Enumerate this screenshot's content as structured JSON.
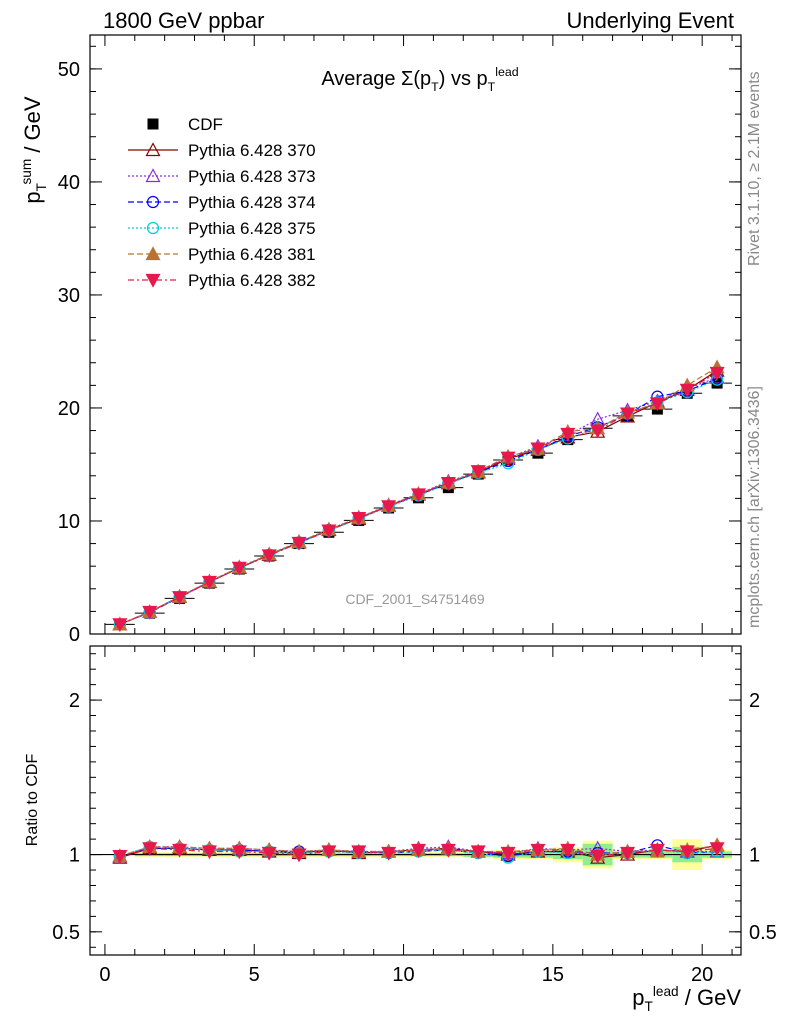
{
  "header": {
    "left": "1800 GeV ppbar",
    "right": "Underlying Event"
  },
  "side_labels": {
    "rivet": "Rivet 3.1.10, ≥ 2.1M events",
    "mcplots": "mcplots.cern.ch [arXiv:1306.3436]"
  },
  "chart_data": [
    {
      "panel": "main",
      "type": "scatter",
      "title": "Average Σ(p_T) vs p_T^lead",
      "ylabel": "p_T^sum / GeV",
      "watermark": "CDF_2001_S4751469",
      "xlim": [
        -0.5,
        21.3
      ],
      "ylim": [
        0,
        53
      ],
      "yticks": [
        0,
        10,
        20,
        30,
        40,
        50
      ],
      "legend_position": "top-left",
      "x": [
        0.5,
        1.5,
        2.5,
        3.5,
        4.5,
        5.5,
        6.5,
        7.5,
        8.5,
        9.5,
        10.5,
        11.5,
        12.5,
        13.5,
        14.5,
        15.5,
        16.5,
        17.5,
        18.5,
        19.5,
        20.5
      ],
      "series": [
        {
          "name": "CDF",
          "color": "#000000",
          "marker": "square",
          "line": "none",
          "values": [
            0.85,
            1.85,
            3.15,
            4.5,
            5.75,
            6.9,
            8.0,
            9.0,
            10.05,
            11.15,
            12.05,
            12.95,
            14.15,
            15.4,
            16.0,
            17.2,
            18.2,
            19.3,
            19.9,
            21.3,
            22.2
          ]
        },
        {
          "name": "Pythia 6.428 370",
          "color": "#8b0000",
          "marker": "triangle-up-open",
          "line": "solid",
          "values": [
            0.85,
            1.95,
            3.3,
            4.6,
            5.85,
            7.0,
            8.1,
            9.2,
            10.2,
            11.35,
            12.35,
            13.35,
            14.3,
            15.5,
            16.3,
            17.4,
            17.9,
            19.25,
            20.5,
            21.6,
            23.3
          ]
        },
        {
          "name": "Pythia 6.428 373",
          "color": "#8a2be2",
          "marker": "triangle-up-open",
          "line": "dotted",
          "values": [
            0.85,
            1.95,
            3.3,
            4.65,
            5.9,
            7.05,
            8.15,
            9.25,
            10.3,
            11.4,
            12.4,
            13.5,
            14.35,
            15.6,
            16.6,
            17.6,
            19.0,
            19.8,
            20.6,
            21.7,
            22.7
          ]
        },
        {
          "name": "Pythia 6.428 374",
          "color": "#0000ff",
          "marker": "circle-open",
          "line": "dashed",
          "values": [
            0.85,
            1.9,
            3.25,
            4.6,
            5.85,
            7.0,
            8.1,
            9.2,
            10.25,
            11.3,
            12.3,
            13.35,
            14.3,
            15.3,
            16.3,
            17.5,
            18.3,
            19.4,
            21.0,
            21.5,
            22.6
          ]
        },
        {
          "name": "Pythia 6.428 375",
          "color": "#00ced1",
          "marker": "circle-open",
          "line": "dotted",
          "values": [
            0.85,
            1.95,
            3.25,
            4.6,
            5.85,
            7.0,
            8.05,
            9.15,
            10.2,
            11.25,
            12.25,
            13.3,
            14.25,
            15.1,
            16.3,
            17.3,
            18.2,
            19.5,
            20.5,
            21.4,
            22.5
          ]
        },
        {
          "name": "Pythia 6.428 381",
          "color": "#b87333",
          "marker": "triangle-up-filled",
          "line": "dashed",
          "values": [
            0.85,
            1.95,
            3.3,
            4.65,
            5.9,
            7.05,
            8.15,
            9.25,
            10.3,
            11.35,
            12.4,
            13.4,
            14.4,
            15.7,
            16.4,
            17.9,
            18.2,
            19.6,
            20.4,
            22.0,
            23.6
          ]
        },
        {
          "name": "Pythia 6.428 382",
          "color": "#e8174c",
          "marker": "triangle-down-filled",
          "line": "dashdot",
          "values": [
            0.85,
            1.95,
            3.25,
            4.6,
            5.85,
            6.95,
            8.05,
            9.15,
            10.25,
            11.3,
            12.35,
            13.35,
            14.4,
            15.6,
            16.4,
            17.7,
            18.0,
            19.5,
            20.4,
            21.6,
            23.1
          ]
        }
      ]
    },
    {
      "panel": "ratio",
      "type": "scatter",
      "ylabel": "Ratio to CDF",
      "xlabel": "p_T^lead / GeV",
      "xlim": [
        -0.5,
        21.3
      ],
      "ylim": [
        0.35,
        2.35
      ],
      "yticks": [
        0.5,
        1,
        2
      ],
      "xticks": [
        0,
        5,
        10,
        15,
        20
      ],
      "band_color_inner": "#90ee90",
      "band_color_outer": "#ffff99",
      "band_halfwidth_inner": [
        0.0,
        0.01,
        0.01,
        0.01,
        0.01,
        0.01,
        0.01,
        0.01,
        0.01,
        0.01,
        0.01,
        0.01,
        0.015,
        0.02,
        0.02,
        0.03,
        0.07,
        0.02,
        0.02,
        0.05,
        0.02
      ],
      "band_halfwidth_outer": [
        0.0,
        0.015,
        0.015,
        0.015,
        0.015,
        0.015,
        0.015,
        0.015,
        0.015,
        0.015,
        0.015,
        0.015,
        0.02,
        0.03,
        0.03,
        0.05,
        0.09,
        0.03,
        0.03,
        0.1,
        0.03
      ],
      "x": [
        0.5,
        1.5,
        2.5,
        3.5,
        4.5,
        5.5,
        6.5,
        7.5,
        8.5,
        9.5,
        10.5,
        11.5,
        12.5,
        13.5,
        14.5,
        15.5,
        16.5,
        17.5,
        18.5,
        19.5,
        20.5
      ],
      "series": [
        {
          "name": "Pythia 6.428 370",
          "values": [
            0.98,
            1.04,
            1.04,
            1.03,
            1.03,
            1.02,
            1.01,
            1.03,
            1.01,
            1.02,
            1.03,
            1.04,
            1.02,
            1.0,
            1.02,
            1.02,
            0.98,
            1.0,
            1.03,
            1.02,
            1.06
          ]
        },
        {
          "name": "Pythia 6.428 373",
          "values": [
            0.99,
            1.05,
            1.05,
            1.04,
            1.04,
            1.03,
            1.02,
            1.03,
            1.02,
            1.02,
            1.04,
            1.05,
            1.02,
            1.01,
            1.04,
            1.03,
            1.04,
            1.02,
            1.03,
            1.02,
            1.02
          ]
        },
        {
          "name": "Pythia 6.428 374",
          "values": [
            0.99,
            1.04,
            1.04,
            1.03,
            1.03,
            1.02,
            1.02,
            1.02,
            1.02,
            1.01,
            1.02,
            1.03,
            1.01,
            0.99,
            1.02,
            1.02,
            1.01,
            1.01,
            1.06,
            1.01,
            1.02
          ]
        },
        {
          "name": "Pythia 6.428 375",
          "values": [
            0.99,
            1.05,
            1.04,
            1.03,
            1.02,
            1.02,
            1.01,
            1.02,
            1.01,
            1.01,
            1.02,
            1.03,
            1.01,
            0.98,
            1.02,
            1.01,
            1.0,
            1.01,
            1.03,
            1.01,
            1.02
          ]
        },
        {
          "name": "Pythia 6.428 381",
          "values": [
            0.99,
            1.05,
            1.05,
            1.04,
            1.04,
            1.03,
            1.02,
            1.03,
            1.02,
            1.02,
            1.03,
            1.04,
            1.02,
            1.02,
            1.03,
            1.04,
            1.0,
            1.02,
            1.02,
            1.03,
            1.06
          ]
        },
        {
          "name": "Pythia 6.428 382",
          "values": [
            0.99,
            1.04,
            1.03,
            1.02,
            1.02,
            1.01,
            1.0,
            1.02,
            1.02,
            1.01,
            1.03,
            1.03,
            1.02,
            1.01,
            1.03,
            1.03,
            0.99,
            1.01,
            1.03,
            1.02,
            1.04
          ]
        }
      ]
    }
  ]
}
